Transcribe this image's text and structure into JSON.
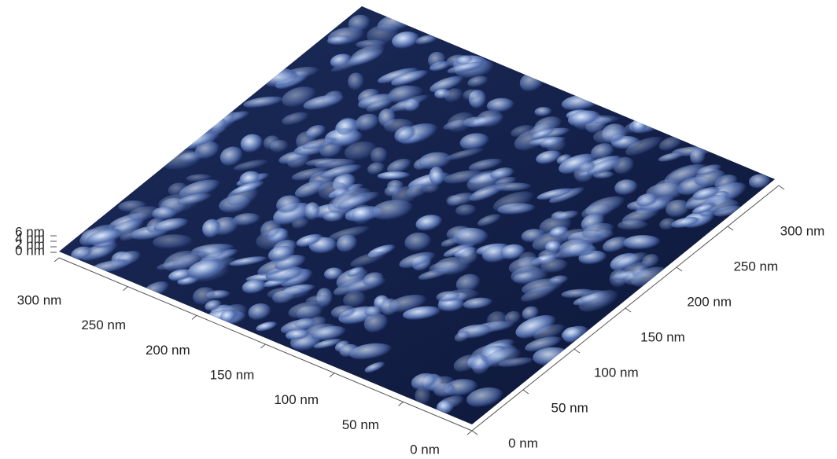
{
  "axes": {
    "front": [
      "300 nm",
      "250 nm",
      "200 nm",
      "150 nm",
      "100 nm",
      "50 nm",
      "0 nm"
    ],
    "right": [
      "0 nm",
      "50 nm",
      "100 nm",
      "150 nm",
      "200 nm",
      "250 nm",
      "300 nm"
    ],
    "height": [
      "6 nm",
      "4 nm",
      "2 nm",
      "0 nm"
    ]
  }
}
